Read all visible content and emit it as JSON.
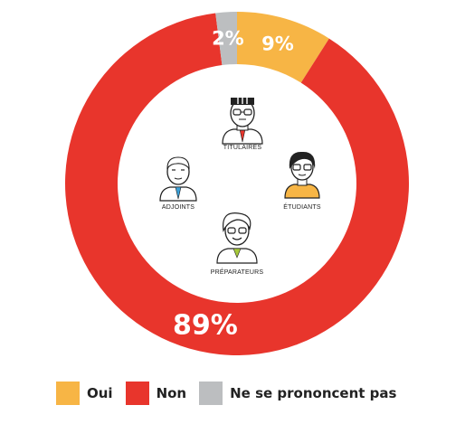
{
  "chart_data": {
    "type": "pie",
    "variant": "donut",
    "categories": [
      "Oui",
      "Non",
      "Ne se prononcent pas"
    ],
    "values": [
      9,
      89,
      2
    ],
    "labels": [
      "9%",
      "89%",
      "2%"
    ],
    "colors": [
      "#f7b545",
      "#e8352c",
      "#bcbec0"
    ],
    "legend_position": "bottom",
    "center_roles": [
      "TITULAIRES",
      "ADJOINTS",
      "ÉTUDIANTS",
      "PRÉPARATEURS"
    ]
  }
}
